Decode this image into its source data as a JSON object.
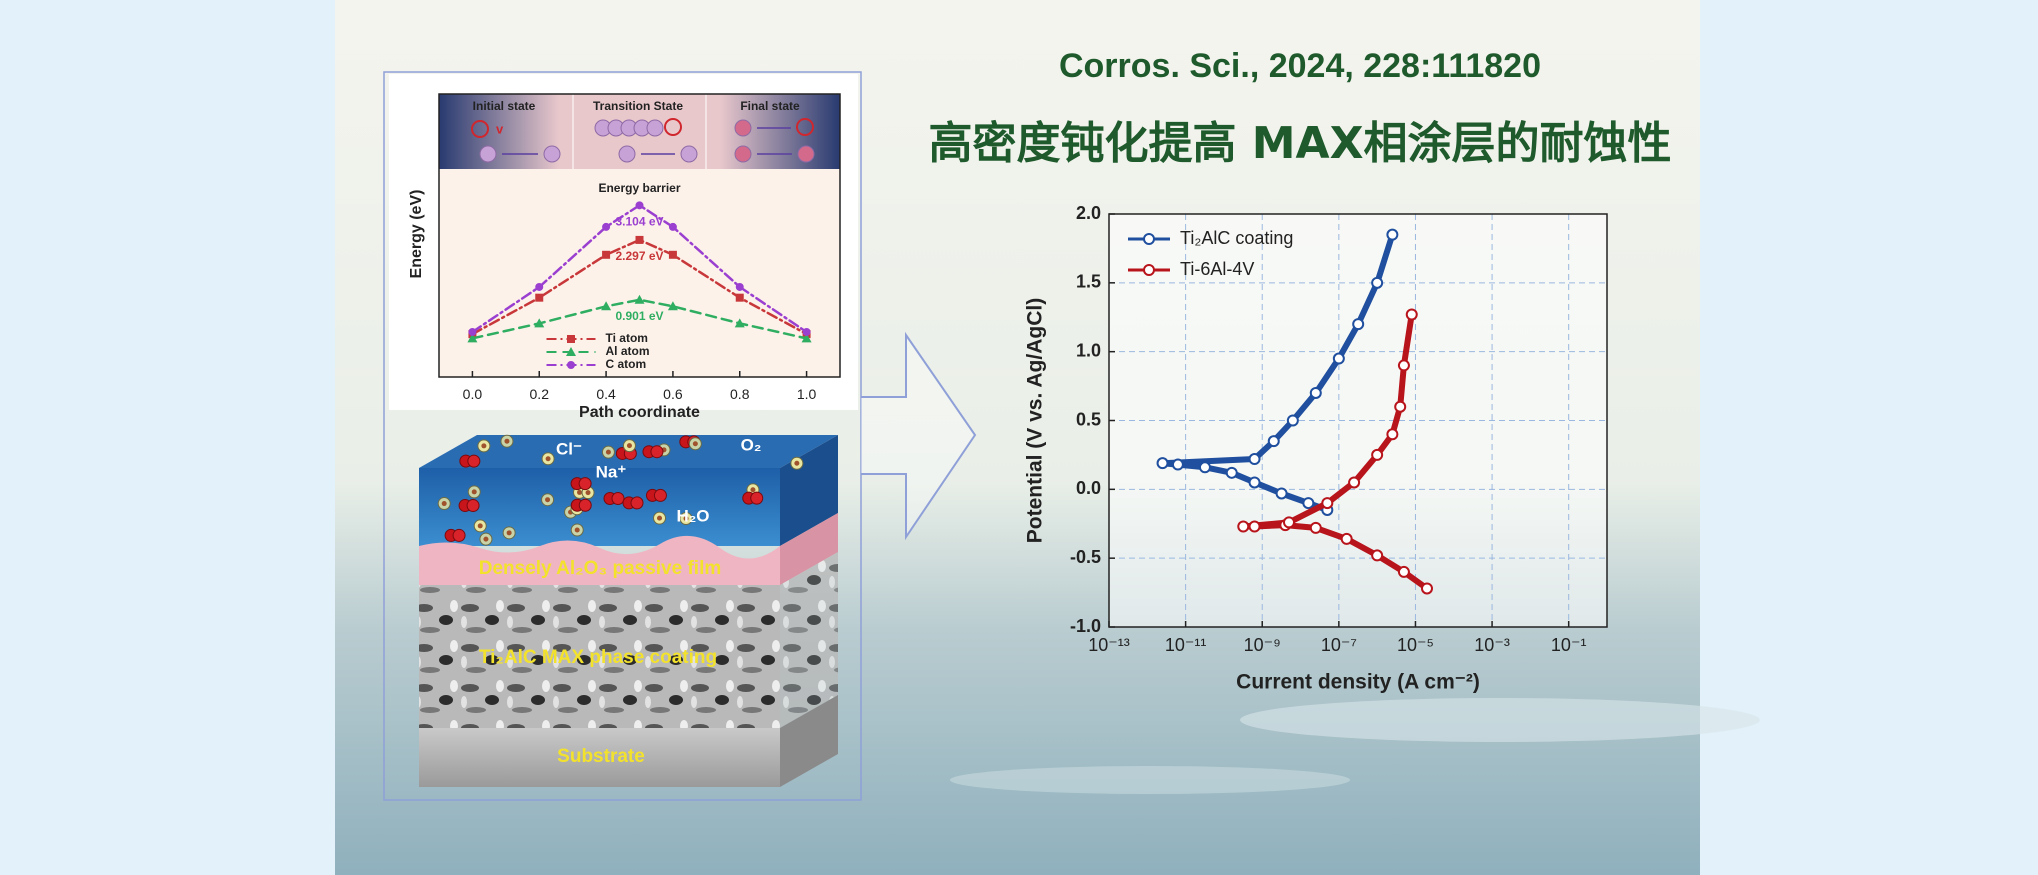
{
  "header": {
    "citation": "Corros. Sci., 2024, 228:111820",
    "title_cn": "高密度钝化提高 MAX相涂层的耐蚀性"
  },
  "diffusion": {
    "states": [
      "Initial state",
      "Transition State",
      "Final state"
    ],
    "vacancy_label": "v"
  },
  "schematic": {
    "ions": [
      "Cl⁻",
      "Na⁺",
      "O₂",
      "H₂O"
    ],
    "layers": [
      "Densely Al₂O₃ passive film",
      "Ti₂AlC MAX phase coating",
      "Substrate"
    ]
  },
  "chart_data": [
    {
      "type": "line",
      "title": "Energy barrier",
      "xlabel": "Path coordinate",
      "ylabel": "Energy (eV)",
      "x": [
        0,
        0.2,
        0.4,
        0.5,
        0.6,
        0.8,
        1
      ],
      "xlim": [
        -0.1,
        1.1
      ],
      "xticks": [
        {
          "value": 0,
          "label": "0.0"
        },
        0.2,
        0.4,
        0.6,
        0.8,
        {
          "value": 1,
          "label": "1.0"
        }
      ],
      "ylim": [
        -0.9,
        5.7
      ],
      "grid": false,
      "legend": "lower center",
      "series": [
        {
          "name": "Ti atom",
          "color": "#c8383a",
          "marker": "square",
          "linestyle": "dashdot",
          "values": [
            0.1,
            0.95,
            1.95,
            2.297,
            1.95,
            0.95,
            0.1
          ],
          "value_labels": [
            null,
            null,
            null,
            "2.297 eV",
            null,
            null,
            null
          ]
        },
        {
          "name": "Al atom",
          "color": "#2fae62",
          "marker": "triangle",
          "linestyle": "dashed",
          "values": [
            0,
            0.35,
            0.75,
            0.901,
            0.75,
            0.35,
            0
          ],
          "value_labels": [
            null,
            null,
            null,
            "0.901 eV",
            null,
            null,
            null
          ]
        },
        {
          "name": "C atom",
          "color": "#9a3fd0",
          "marker": "circle",
          "linestyle": "dashdot",
          "values": [
            0.15,
            1.2,
            2.6,
            3.104,
            2.6,
            1.2,
            0.15
          ],
          "value_labels": [
            null,
            null,
            null,
            "3.104 eV",
            null,
            null,
            null
          ]
        }
      ]
    },
    {
      "type": "line",
      "xlabel": "Current density (A cm⁻²)",
      "ylabel": "Potential (V vs. Ag/AgCl)",
      "xscale": "log",
      "xlim": [
        1e-13,
        1
      ],
      "xticks": [
        {
          "value": 1e-13,
          "label": "10⁻¹³"
        },
        {
          "value": 1e-11,
          "label": "10⁻¹¹"
        },
        {
          "value": 1e-09,
          "label": "10⁻⁹"
        },
        {
          "value": 1e-07,
          "label": "10⁻⁷"
        },
        {
          "value": 1e-05,
          "label": "10⁻⁵"
        },
        {
          "value": 0.001,
          "label": "10⁻³"
        },
        {
          "value": 0.1,
          "label": "10⁻¹"
        }
      ],
      "ylim": [
        -1,
        2
      ],
      "yticks": [
        {
          "value": -1,
          "label": "-1.0"
        },
        -0.5,
        {
          "value": 0,
          "label": "0.0"
        },
        0.5,
        {
          "value": 1,
          "label": "1.0"
        },
        1.5,
        {
          "value": 2,
          "label": "2.0"
        }
      ],
      "grid": true,
      "legend": "upper left",
      "series": [
        {
          "name": "Ti₂AlC coating",
          "color": "#1f4f9e",
          "marker": "open-circle",
          "x": [
            5e-08,
            1.6e-08,
            3.2e-09,
            6.3e-10,
            1.6e-10,
            3.2e-11,
            6.3e-12,
            2.5e-12,
            6.3e-10,
            2e-09,
            6.3e-09,
            2.5e-08,
            1e-07,
            3.2e-07,
            1e-06,
            2.5e-06
          ],
          "values": [
            -0.15,
            -0.1,
            -0.03,
            0.05,
            0.12,
            0.16,
            0.18,
            0.19,
            0.22,
            0.35,
            0.5,
            0.7,
            0.95,
            1.2,
            1.5,
            1.85
          ]
        },
        {
          "name": "Ti-6Al-4V",
          "color": "#b8141b",
          "marker": "open-circle",
          "x": [
            2e-05,
            5e-06,
            1e-06,
            1.6e-07,
            2.5e-08,
            4e-09,
            6.3e-10,
            3.2e-10,
            5e-09,
            5e-08,
            2.5e-07,
            1e-06,
            2.5e-06,
            4e-06,
            5e-06,
            8e-06
          ],
          "values": [
            -0.72,
            -0.6,
            -0.48,
            -0.36,
            -0.28,
            -0.26,
            -0.27,
            -0.27,
            -0.24,
            -0.1,
            0.05,
            0.25,
            0.4,
            0.6,
            0.9,
            1.27
          ]
        }
      ]
    }
  ]
}
